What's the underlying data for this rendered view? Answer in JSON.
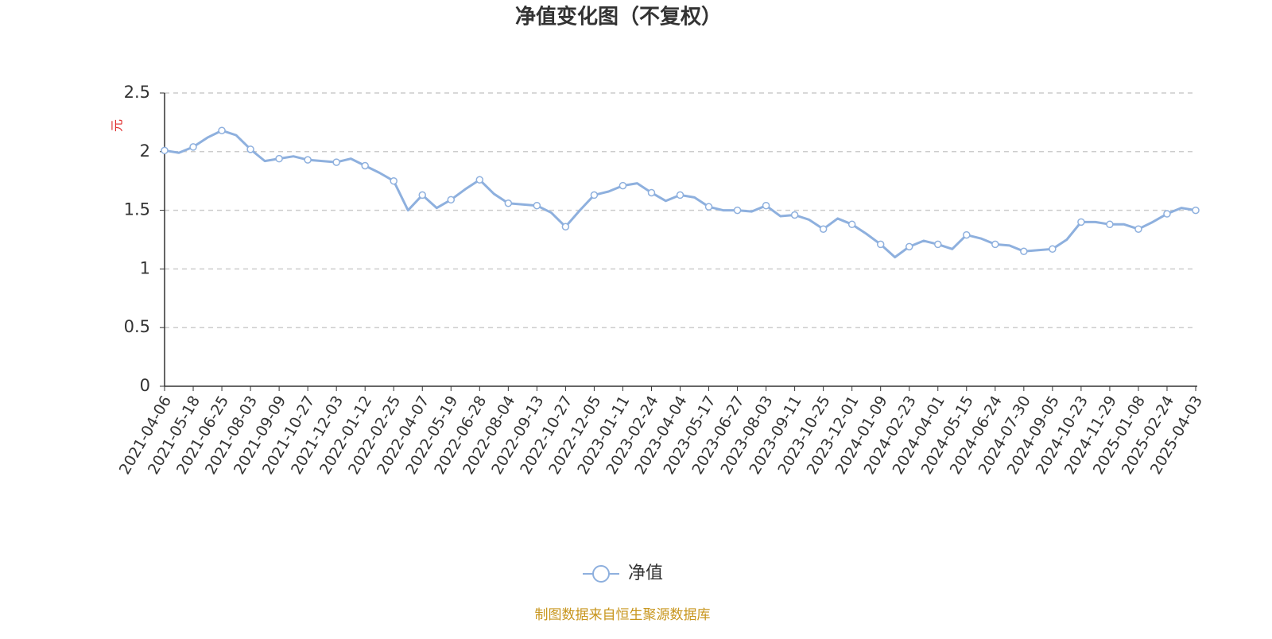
{
  "chart_data": {
    "type": "line",
    "title": "净值变化图（不复权）",
    "y_label": "元",
    "source": "制图数据来自恒生聚源数据库",
    "categories": [
      "2021-04-06",
      null,
      "2021-05-18",
      null,
      "2021-06-25",
      null,
      "2021-08-03",
      null,
      "2021-09-09",
      null,
      "2021-10-27",
      null,
      "2021-12-03",
      null,
      "2022-01-12",
      null,
      "2022-02-25",
      null,
      "2022-04-07",
      null,
      "2022-05-19",
      null,
      "2022-06-28",
      null,
      "2022-08-04",
      null,
      "2022-09-13",
      null,
      "2022-10-27",
      null,
      "2022-12-05",
      null,
      "2023-01-11",
      null,
      "2023-02-24",
      null,
      "2023-04-04",
      null,
      "2023-05-17",
      null,
      "2023-06-27",
      null,
      "2023-08-03",
      null,
      "2023-09-11",
      null,
      "2023-10-25",
      null,
      "2023-12-01",
      null,
      "2024-01-09",
      null,
      "2024-02-23",
      null,
      "2024-04-01",
      null,
      "2024-05-15",
      null,
      "2024-06-24",
      null,
      "2024-07-30",
      null,
      "2024-09-05",
      null,
      "2024-10-23",
      null,
      "2024-11-29",
      null,
      "2025-01-08",
      null,
      "2025-02-24",
      null,
      "2025-04-03"
    ],
    "series": [
      {
        "name": "净值",
        "color": "#8eb0de",
        "values": [
          2.01,
          1.99,
          2.04,
          2.12,
          2.18,
          2.14,
          2.02,
          1.92,
          1.94,
          1.96,
          1.93,
          1.92,
          1.91,
          1.94,
          1.88,
          1.82,
          1.75,
          1.5,
          1.63,
          1.52,
          1.59,
          1.68,
          1.76,
          1.64,
          1.56,
          1.55,
          1.54,
          1.48,
          1.36,
          1.5,
          1.63,
          1.66,
          1.71,
          1.73,
          1.65,
          1.58,
          1.63,
          1.61,
          1.53,
          1.5,
          1.5,
          1.49,
          1.54,
          1.45,
          1.46,
          1.42,
          1.34,
          1.43,
          1.38,
          1.3,
          1.21,
          1.1,
          1.19,
          1.24,
          1.21,
          1.17,
          1.29,
          1.26,
          1.21,
          1.2,
          1.15,
          1.16,
          1.17,
          1.25,
          1.4,
          1.4,
          1.38,
          1.38,
          1.34,
          1.4,
          1.47,
          1.52,
          1.5
        ]
      }
    ],
    "ylim": [
      0,
      2.5
    ],
    "yticks": [
      0,
      0.5,
      1,
      1.5,
      2,
      2.5
    ],
    "grid": true,
    "legend": "bottom"
  }
}
